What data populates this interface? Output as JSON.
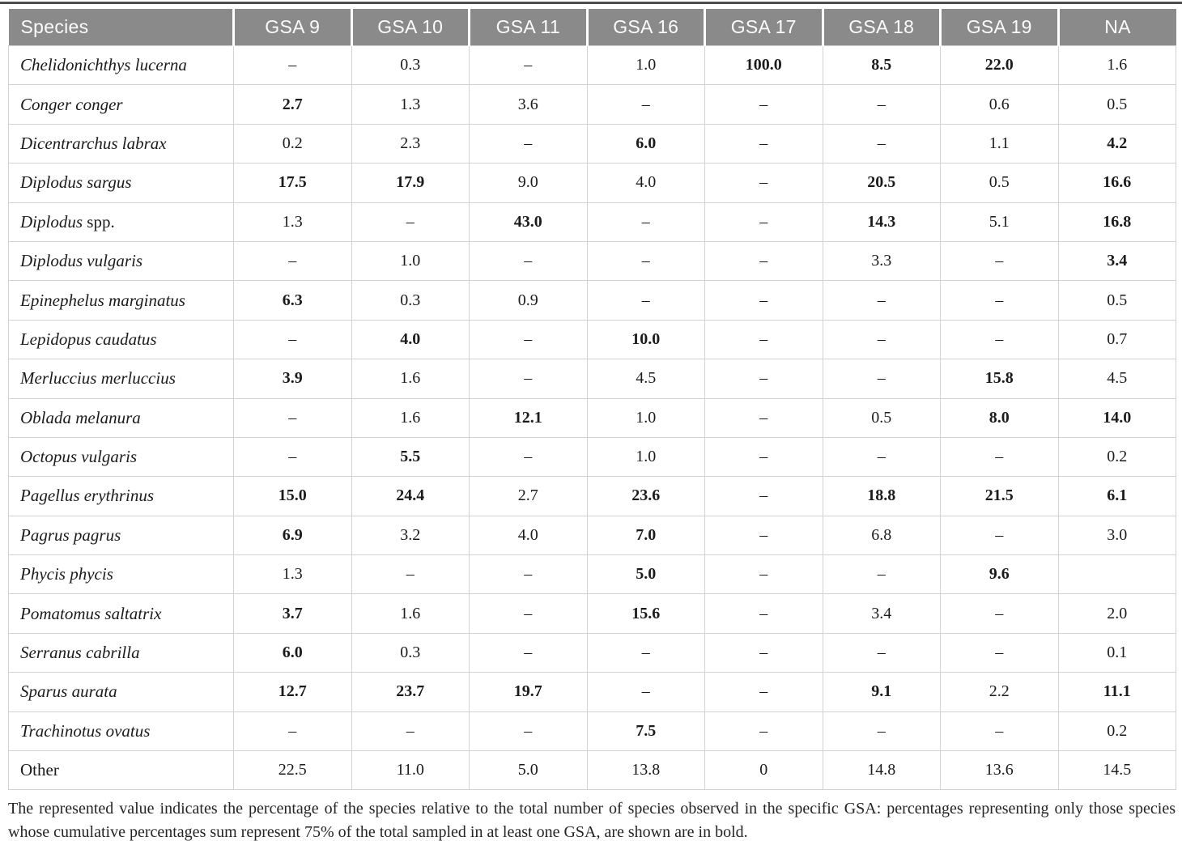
{
  "table": {
    "columns": [
      "Species",
      "GSA 9",
      "GSA 10",
      "GSA 11",
      "GSA 16",
      "GSA 17",
      "GSA 18",
      "GSA 19",
      "NA"
    ],
    "rows": [
      {
        "species_italic": "Chelidonichthys lucerna",
        "species_roman": "",
        "values": [
          "–",
          "0.3",
          "–",
          "1.0",
          "100.0",
          "8.5",
          "22.0",
          "1.6"
        ],
        "bold": [
          0,
          0,
          0,
          0,
          1,
          1,
          1,
          0
        ]
      },
      {
        "species_italic": "Conger conger",
        "species_roman": "",
        "values": [
          "2.7",
          "1.3",
          "3.6",
          "–",
          "–",
          "–",
          "0.6",
          "0.5"
        ],
        "bold": [
          1,
          0,
          0,
          0,
          0,
          0,
          0,
          0
        ]
      },
      {
        "species_italic": "Dicentrarchus labrax",
        "species_roman": "",
        "values": [
          "0.2",
          "2.3",
          "–",
          "6.0",
          "–",
          "–",
          "1.1",
          "4.2"
        ],
        "bold": [
          0,
          0,
          0,
          1,
          0,
          0,
          0,
          1
        ]
      },
      {
        "species_italic": "Diplodus sargus",
        "species_roman": "",
        "values": [
          "17.5",
          "17.9",
          "9.0",
          "4.0",
          "–",
          "20.5",
          "0.5",
          "16.6"
        ],
        "bold": [
          1,
          1,
          0,
          0,
          0,
          1,
          0,
          1
        ]
      },
      {
        "species_italic": "Diplodus",
        "species_roman": " spp.",
        "values": [
          "1.3",
          "–",
          "43.0",
          "–",
          "–",
          "14.3",
          "5.1",
          "16.8"
        ],
        "bold": [
          0,
          0,
          1,
          0,
          0,
          1,
          0,
          1
        ]
      },
      {
        "species_italic": "Diplodus vulgaris",
        "species_roman": "",
        "values": [
          "–",
          "1.0",
          "–",
          "–",
          "–",
          "3.3",
          "–",
          "3.4"
        ],
        "bold": [
          0,
          0,
          0,
          0,
          0,
          0,
          0,
          1
        ]
      },
      {
        "species_italic": "Epinephelus marginatus",
        "species_roman": "",
        "values": [
          "6.3",
          "0.3",
          "0.9",
          "–",
          "–",
          "–",
          "–",
          "0.5"
        ],
        "bold": [
          1,
          0,
          0,
          0,
          0,
          0,
          0,
          0
        ]
      },
      {
        "species_italic": "Lepidopus caudatus",
        "species_roman": "",
        "values": [
          "–",
          "4.0",
          "–",
          "10.0",
          "–",
          "–",
          "–",
          "0.7"
        ],
        "bold": [
          0,
          1,
          0,
          1,
          0,
          0,
          0,
          0
        ]
      },
      {
        "species_italic": "Merluccius merluccius",
        "species_roman": "",
        "values": [
          "3.9",
          "1.6",
          "–",
          "4.5",
          "–",
          "–",
          "15.8",
          "4.5"
        ],
        "bold": [
          1,
          0,
          0,
          0,
          0,
          0,
          1,
          0
        ]
      },
      {
        "species_italic": "Oblada melanura",
        "species_roman": "",
        "values": [
          "–",
          "1.6",
          "12.1",
          "1.0",
          "–",
          "0.5",
          "8.0",
          "14.0"
        ],
        "bold": [
          0,
          0,
          1,
          0,
          0,
          0,
          1,
          1
        ]
      },
      {
        "species_italic": "Octopus vulgaris",
        "species_roman": "",
        "values": [
          "–",
          "5.5",
          "–",
          "1.0",
          "–",
          "–",
          "–",
          "0.2"
        ],
        "bold": [
          0,
          1,
          0,
          0,
          0,
          0,
          0,
          0
        ]
      },
      {
        "species_italic": "Pagellus erythrinus",
        "species_roman": "",
        "values": [
          "15.0",
          "24.4",
          "2.7",
          "23.6",
          "–",
          "18.8",
          "21.5",
          "6.1"
        ],
        "bold": [
          1,
          1,
          0,
          1,
          0,
          1,
          1,
          1
        ]
      },
      {
        "species_italic": "Pagrus pagrus",
        "species_roman": "",
        "values": [
          "6.9",
          "3.2",
          "4.0",
          "7.0",
          "–",
          "6.8",
          "–",
          "3.0"
        ],
        "bold": [
          1,
          0,
          0,
          1,
          0,
          0,
          0,
          0
        ]
      },
      {
        "species_italic": "Phycis phycis",
        "species_roman": "",
        "values": [
          "1.3",
          "–",
          "–",
          "5.0",
          "–",
          "–",
          "9.6",
          ""
        ],
        "bold": [
          0,
          0,
          0,
          1,
          0,
          0,
          1,
          0
        ]
      },
      {
        "species_italic": "Pomatomus saltatrix",
        "species_roman": "",
        "values": [
          "3.7",
          "1.6",
          "–",
          "15.6",
          "–",
          "3.4",
          "–",
          "2.0"
        ],
        "bold": [
          1,
          0,
          0,
          1,
          0,
          0,
          0,
          0
        ]
      },
      {
        "species_italic": "Serranus cabrilla",
        "species_roman": "",
        "values": [
          "6.0",
          "0.3",
          "–",
          "–",
          "–",
          "–",
          "–",
          "0.1"
        ],
        "bold": [
          1,
          0,
          0,
          0,
          0,
          0,
          0,
          0
        ]
      },
      {
        "species_italic": "Sparus aurata",
        "species_roman": "",
        "values": [
          "12.7",
          "23.7",
          "19.7",
          "–",
          "–",
          "9.1",
          "2.2",
          "11.1"
        ],
        "bold": [
          1,
          1,
          1,
          0,
          0,
          1,
          0,
          1
        ]
      },
      {
        "species_italic": "Trachinotus ovatus",
        "species_roman": "",
        "values": [
          "–",
          "–",
          "–",
          "7.5",
          "–",
          "–",
          "–",
          "0.2"
        ],
        "bold": [
          0,
          0,
          0,
          1,
          0,
          0,
          0,
          0
        ]
      },
      {
        "species_italic": "",
        "species_roman": "Other",
        "values": [
          "22.5",
          "11.0",
          "5.0",
          "13.8",
          "0",
          "14.8",
          "13.6",
          "14.5"
        ],
        "bold": [
          0,
          0,
          0,
          0,
          0,
          0,
          0,
          0
        ]
      }
    ]
  },
  "footnote": "The represented value indicates the percentage of the species relative to the total number of species observed in the specific GSA: percentages representing only those species whose cumulative percentages sum represent 75% of the total sampled in at least one GSA, are shown are in bold.",
  "colors": {
    "header_bg": "#8a8a8a",
    "header_text": "#fbfbfb",
    "body_text": "#1b1b1b",
    "border": "#d2d2d2",
    "top_rule": "#4d4d4d"
  }
}
